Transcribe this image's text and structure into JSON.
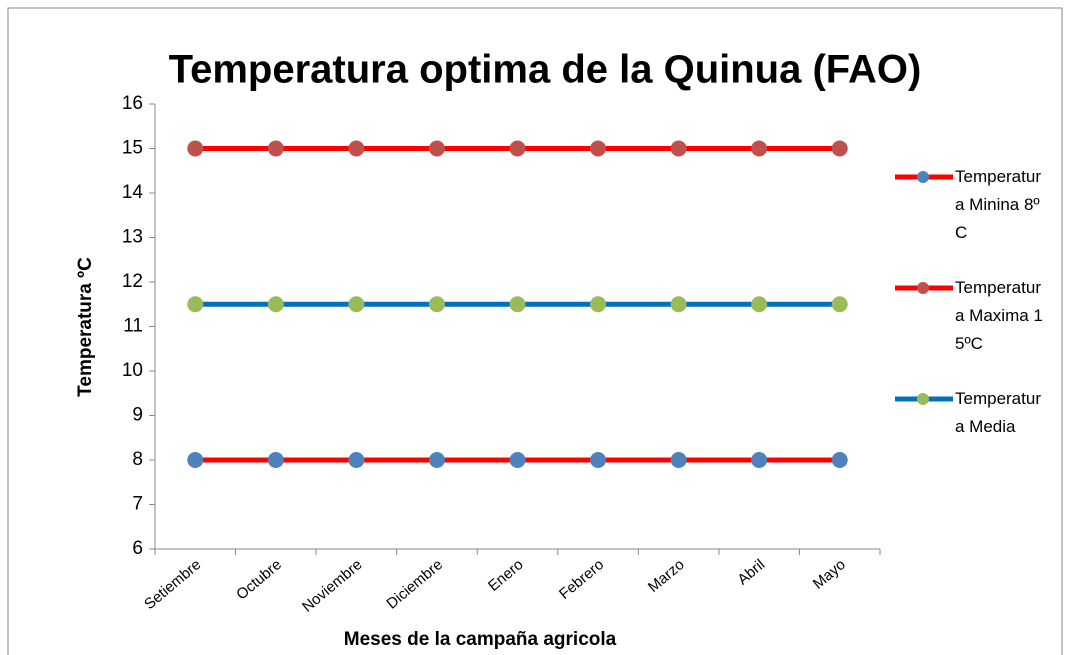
{
  "chart_data": {
    "type": "line",
    "title": "Temperatura optima de la Quinua (FAO)",
    "x_label": "Meses de la campaña agricola",
    "y_label": "Temperatura ºC",
    "categories": [
      "Setiembre",
      "Octubre",
      "Noviembre",
      "Diciembre",
      "Enero",
      "Febrero",
      "Marzo",
      "Abril",
      "Mayo"
    ],
    "series": [
      {
        "name": "Temperatura Minina 8ºC",
        "color": "#ff0000",
        "marker_color": "#4f81bd",
        "values": [
          8,
          8,
          8,
          8,
          8,
          8,
          8,
          8,
          8
        ]
      },
      {
        "name": "Temperatura Maxima 15ºC",
        "color": "#ff0000",
        "marker_color": "#c0504d",
        "values": [
          15,
          15,
          15,
          15,
          15,
          15,
          15,
          15,
          15
        ]
      },
      {
        "name": "Temperatura Media",
        "color": "#0070c0",
        "marker_color": "#9bbb59",
        "values": [
          11.5,
          11.5,
          11.5,
          11.5,
          11.5,
          11.5,
          11.5,
          11.5,
          11.5
        ]
      }
    ],
    "ylim": [
      6,
      16
    ],
    "yticks": [
      6,
      7,
      8,
      9,
      10,
      11,
      12,
      13,
      14,
      15,
      16
    ],
    "grid": false,
    "legend": "right"
  }
}
